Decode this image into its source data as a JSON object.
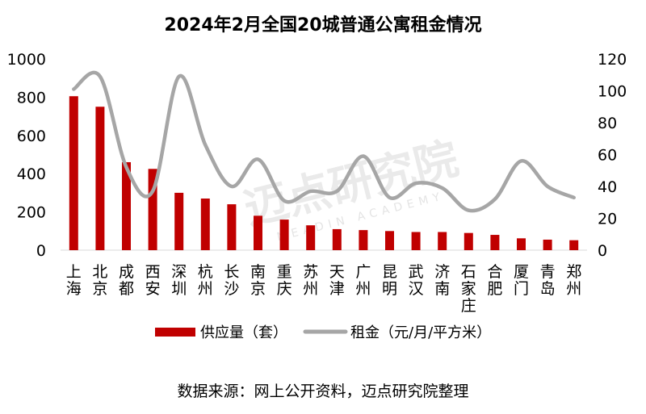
{
  "chart_data": {
    "type": "bar",
    "title": "2024年2月全国20城普通公寓租金情况",
    "categories": [
      "上海",
      "北京",
      "成都",
      "西安",
      "深圳",
      "杭州",
      "长沙",
      "南京",
      "重庆",
      "苏州",
      "天津",
      "广州",
      "昆明",
      "武汉",
      "济南",
      "石家庄",
      "合肥",
      "厦门",
      "青岛",
      "郑州"
    ],
    "series": [
      {
        "name": "供应量（套）",
        "type": "bar",
        "axis": "left",
        "color": "#c00000",
        "values": [
          805,
          750,
          460,
          425,
          300,
          270,
          240,
          180,
          160,
          130,
          110,
          105,
          100,
          95,
          95,
          90,
          80,
          62,
          55,
          52
        ]
      },
      {
        "name": "租金（元/月/平方米）",
        "type": "line",
        "axis": "right",
        "color": "#a6a6a6",
        "values": [
          101,
          109,
          52,
          37,
          109,
          66,
          40,
          57,
          31,
          37,
          37,
          59,
          33,
          42,
          39,
          25,
          32,
          56,
          40,
          33
        ]
      }
    ],
    "ylim_left": [
      0,
      1000
    ],
    "ylim_right": [
      0,
      120
    ],
    "yticks_left": [
      "0",
      "200",
      "400",
      "600",
      "800",
      "1000"
    ],
    "yticks_right": [
      "0",
      "20",
      "40",
      "60",
      "80",
      "100",
      "120"
    ],
    "legend_position": "bottom",
    "grid": false
  },
  "watermark": {
    "text": "迈点研究院",
    "subtext": "MEADIN ACADEMY"
  },
  "source_note": "数据来源：网上公开资料，迈点研究院整理"
}
